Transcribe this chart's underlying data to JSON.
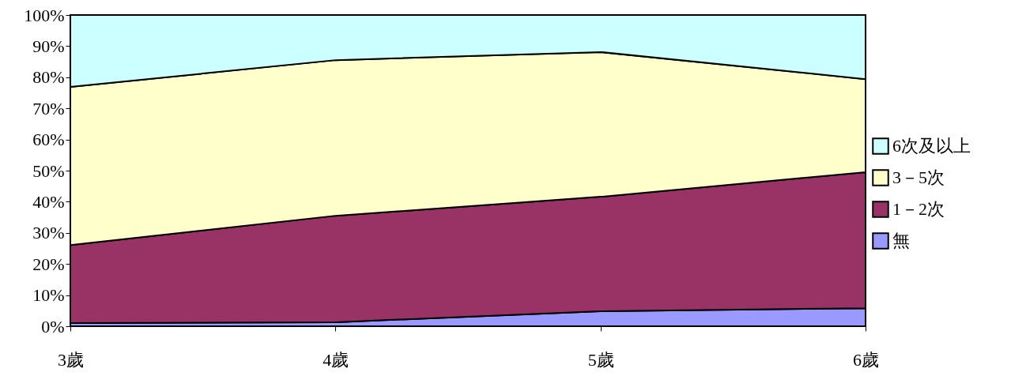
{
  "chart_data": {
    "type": "area",
    "stacked": true,
    "categories": [
      "3歲",
      "4歲",
      "5歲",
      "6歲"
    ],
    "series": [
      {
        "name": "無",
        "color": "#9999ff",
        "values": [
          1.0,
          1.3,
          4.8,
          5.8
        ]
      },
      {
        "name": "1－2次",
        "color": "#993366",
        "values": [
          25.1,
          34.2,
          36.8,
          43.7
        ]
      },
      {
        "name": "3－5次",
        "color": "#ffffcc",
        "values": [
          50.8,
          50.0,
          46.5,
          29.9
        ]
      },
      {
        "name": "6次及以上",
        "color": "#ccffff",
        "values": [
          23.1,
          14.5,
          11.9,
          20.6
        ]
      }
    ],
    "ylim": [
      0,
      100
    ],
    "yticks": [
      {
        "value": 0,
        "label": "0%"
      },
      {
        "value": 10,
        "label": "10%"
      },
      {
        "value": 20,
        "label": "20%"
      },
      {
        "value": 30,
        "label": "30%"
      },
      {
        "value": 40,
        "label": "40%"
      },
      {
        "value": 50,
        "label": "50%"
      },
      {
        "value": 60,
        "label": "60%"
      },
      {
        "value": 70,
        "label": "70%"
      },
      {
        "value": 80,
        "label": "80%"
      },
      {
        "value": 90,
        "label": "90%"
      },
      {
        "value": 100,
        "label": "100%"
      }
    ],
    "grid": false,
    "legend": "right"
  }
}
